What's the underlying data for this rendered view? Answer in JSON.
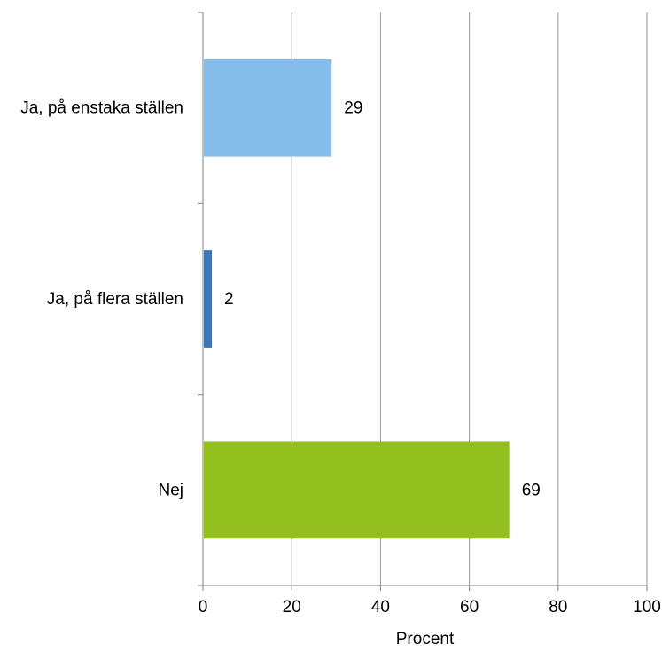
{
  "chart_data": {
    "type": "bar",
    "orientation": "horizontal",
    "title": "",
    "xlabel": "Procent",
    "ylabel": "",
    "xlim": [
      0,
      100
    ],
    "x_ticks": [
      "0",
      "20",
      "40",
      "60",
      "80",
      "100"
    ],
    "grid": "vertical",
    "legend": "none",
    "categories": [
      "Ja, på enstaka ställen",
      "Ja, på flera ställen",
      "Nej"
    ],
    "values": [
      29,
      2,
      69
    ],
    "data_labels": [
      "29",
      "2",
      "69"
    ],
    "colors": [
      "#85bce9",
      "#3f76b4",
      "#93c01f"
    ],
    "gridline_color": "#999999",
    "axis_color": "#7f7f7f"
  }
}
